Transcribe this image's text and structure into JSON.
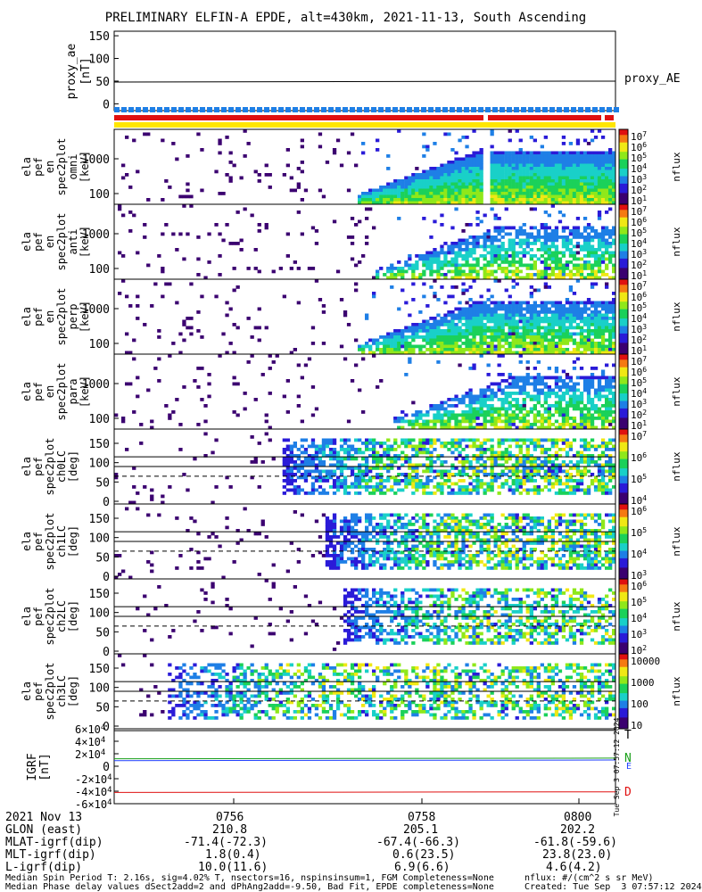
{
  "title": "PRELIMINARY ELFIN-A EPDE, alt=430km, 2021-11-13, South Ascending",
  "chart_data": [
    {
      "type": "line",
      "ylabel": "proxy_ae [nT]",
      "yticks": [
        0,
        50,
        100,
        150
      ],
      "ylim": [
        -15,
        160
      ],
      "series": [
        {
          "name": "proxy_AE",
          "values": [
            48,
            50
          ]
        }
      ],
      "legend": "right"
    },
    {
      "type": "heatmap",
      "ylabel": "ela pef en spec2plot omni [keV]",
      "ytick_labels": [
        "1000",
        "100"
      ],
      "colorbar": {
        "label": "nflux",
        "ticks": [
          "10^7",
          "10^6",
          "10^5",
          "10^4",
          "10^3",
          "10^2",
          "10^1"
        ]
      }
    },
    {
      "type": "heatmap",
      "ylabel": "ela pef en spec2plot anti [keV]",
      "ytick_labels": [
        "1000",
        "100"
      ],
      "colorbar": {
        "label": "nflux",
        "ticks": [
          "10^7",
          "10^6",
          "10^5",
          "10^4",
          "10^3",
          "10^2",
          "10^1"
        ]
      }
    },
    {
      "type": "heatmap",
      "ylabel": "ela pef en spec2plot perp [keV]",
      "ytick_labels": [
        "1000",
        "100"
      ],
      "colorbar": {
        "label": "nflux",
        "ticks": [
          "10^7",
          "10^6",
          "10^5",
          "10^4",
          "10^3",
          "10^2",
          "10^1"
        ]
      }
    },
    {
      "type": "heatmap",
      "ylabel": "ela pef en spec2plot para [keV]",
      "ytick_labels": [
        "1000",
        "100"
      ],
      "colorbar": {
        "label": "nflux",
        "ticks": [
          "10^7",
          "10^6",
          "10^5",
          "10^4",
          "10^3",
          "10^2",
          "10^1"
        ]
      }
    },
    {
      "type": "heatmap",
      "ylabel": "ela pef spec2plot ch0LC [deg]",
      "yticks": [
        0,
        50,
        100,
        150
      ],
      "colorbar": {
        "label": "nflux",
        "ticks": [
          "10^7",
          "10^6",
          "10^5",
          "10^4"
        ]
      }
    },
    {
      "type": "heatmap",
      "ylabel": "ela pef spec2plot ch1LC [deg]",
      "yticks": [
        0,
        50,
        100,
        150
      ],
      "colorbar": {
        "label": "nflux",
        "ticks": [
          "10^6",
          "10^5",
          "10^4",
          "10^3"
        ]
      }
    },
    {
      "type": "heatmap",
      "ylabel": "ela pef spec2plot ch2LC [deg]",
      "yticks": [
        0,
        50,
        100,
        150
      ],
      "colorbar": {
        "label": "nflux",
        "ticks": [
          "10^6",
          "10^5",
          "10^4",
          "10^3",
          "10^2"
        ]
      }
    },
    {
      "type": "heatmap",
      "ylabel": "ela pef spec2plot ch3LC [deg]",
      "yticks": [
        0,
        50,
        100,
        150
      ],
      "colorbar": {
        "label": "nflux",
        "ticks": [
          "10000",
          "1000",
          "100",
          "10"
        ]
      }
    },
    {
      "type": "line",
      "ylabel": "IGRF [nT]",
      "ytick_labels": [
        "6×10^4",
        "4×10^4",
        "2×10^4",
        "0",
        "-2×10^4",
        "-4×10^4",
        "-6×10^4"
      ],
      "ylim": [
        -60000,
        60000
      ],
      "series": [
        {
          "name": "T",
          "values": [
            57000,
            57500
          ]
        },
        {
          "name": "N",
          "values": [
            12000,
            13000
          ]
        },
        {
          "name": "E",
          "values": [
            9000,
            10000
          ]
        },
        {
          "name": "D",
          "values": [
            -42000,
            -41000
          ]
        }
      ]
    }
  ],
  "xticks": [
    "0756",
    "0758",
    "0800"
  ],
  "ticktable": {
    "date": "2021 Nov 13",
    "rows": [
      {
        "label": "GLON (east)",
        "values": [
          "210.8",
          "205.1",
          "202.2"
        ]
      },
      {
        "label": "MLAT-igrf(dip)",
        "values": [
          "-71.4(-72.3)",
          "-67.4(-66.3)",
          "-61.8(-59.6)"
        ]
      },
      {
        "label": "MLT-igrf(dip)",
        "values": [
          "1.8(0.4)",
          "0.6(23.5)",
          "23.8(23.0)"
        ]
      },
      {
        "label": "L-igrf(dip)",
        "values": [
          "10.0(11.6)",
          "6.9(6.6)",
          "4.6(4.2)"
        ]
      }
    ]
  },
  "footer": {
    "left1": "Median Spin Period T: 2.16s, sig=4.02% T, nsectors=16, nspinsinsum=1, FGM Completeness=None",
    "left2": "Median Phase delay values dSect2add=2 and dPhAng2add=-9.50, Bad Fit, EPDE completeness=None",
    "right1": "nflux: #/(cm^2 s sr MeV)",
    "right2": "Created: Tue Sep  3 07:57:12 2024"
  },
  "side_stamp": "Tue Sep  3 07:57:12 2024",
  "colors": {
    "blue_bar": "#1e7fe6",
    "red_bar": "#e01010",
    "yellow_bar": "#ffe600",
    "T": "#000000",
    "N": "#1aa01a",
    "E": "#2040ff",
    "D": "#e01010"
  }
}
